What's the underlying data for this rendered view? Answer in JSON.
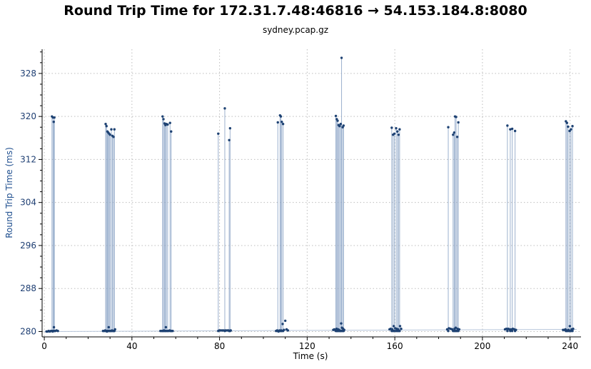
{
  "chart_data": {
    "type": "line",
    "title": "Round Trip Time for 172.31.7.48:46816 → 54.153.184.8:8080",
    "subtitle": "sydney.pcap.gz",
    "xlabel": "Time (s)",
    "ylabel": "Round Trip Time (ms)",
    "xlim": [
      -1,
      245
    ],
    "ylim": [
      279,
      332.5
    ],
    "x_ticks": [
      0,
      40,
      80,
      120,
      160,
      200,
      240
    ],
    "y_ticks": [
      280,
      288,
      296,
      304,
      312,
      320,
      328
    ],
    "grid": true,
    "baseline": {
      "x": [
        0,
        243
      ],
      "y": [
        280,
        280.4
      ]
    },
    "series": [
      {
        "name": "",
        "x": [
          3.5,
          4.0,
          4.3,
          4.6,
          28.0,
          28.4,
          28.8,
          29.2,
          29.6,
          30.0,
          30.6,
          31.1,
          31.6,
          32.0,
          54.0,
          54.4,
          54.9,
          55.3,
          55.7,
          56.3,
          57.4,
          57.9,
          79.4,
          82.4,
          84.4,
          84.8,
          106.6,
          107.6,
          108.0,
          108.4,
          109.0,
          133.1,
          133.5,
          133.9,
          134.3,
          134.8,
          135.3,
          135.7,
          136.2,
          136.6,
          158.6,
          159.2,
          159.8,
          160.6,
          161.2,
          161.7,
          162.2,
          184.4,
          186.6,
          187.1,
          187.5,
          188.0,
          188.5,
          189.0,
          211.4,
          212.7,
          213.6,
          214.9,
          238.1,
          238.6,
          239.1,
          239.8,
          240.4,
          241.1
        ],
        "y": [
          320.0,
          319.8,
          319.0,
          319.8,
          318.6,
          318.2,
          317.2,
          317.0,
          316.8,
          316.6,
          317.6,
          316.4,
          316.2,
          317.6,
          320.0,
          319.5,
          318.7,
          318.4,
          318.6,
          318.5,
          318.8,
          317.2,
          316.8,
          321.5,
          315.6,
          317.8,
          318.9,
          320.2,
          320.0,
          319.0,
          318.6,
          320.1,
          319.5,
          319.2,
          318.4,
          318.2,
          318.6,
          330.9,
          318.0,
          318.3,
          317.9,
          316.6,
          316.8,
          317.8,
          317.2,
          316.6,
          317.6,
          318.0,
          316.6,
          317.0,
          320.0,
          319.9,
          316.2,
          318.9,
          318.3,
          317.6,
          317.7,
          317.3,
          319.1,
          318.8,
          318.1,
          317.3,
          317.6,
          318.2
        ]
      }
    ],
    "markers": {
      "x": [
        1.0,
        1.5,
        2.0,
        2.5,
        3.0,
        3.8,
        4.4,
        5.0,
        5.6,
        6.2,
        26.8,
        27.3,
        27.8,
        28.6,
        29.4,
        30.2,
        30.9,
        31.7,
        32.3,
        53.0,
        53.6,
        54.6,
        55.5,
        56.6,
        57.2,
        58.0,
        58.6,
        79.9,
        80.5,
        81.2,
        81.9,
        82.8,
        83.5,
        84.1,
        85.1,
        105.8,
        106.3,
        106.9,
        107.4,
        108.2,
        108.8,
        109.4,
        110.0,
        110.6,
        111.2,
        131.9,
        132.4,
        132.9,
        133.4,
        134.1,
        134.6,
        135.1,
        135.5,
        135.9,
        136.4,
        136.9,
        157.6,
        158.1,
        158.9,
        159.5,
        160.2,
        160.9,
        161.5,
        162.4,
        162.9,
        183.9,
        184.7,
        185.5,
        186.2,
        187.3,
        187.8,
        188.7,
        189.4,
        210.3,
        210.9,
        211.8,
        212.4,
        213.2,
        213.9,
        214.6,
        215.3,
        236.8,
        237.4,
        237.9,
        238.4,
        239.3,
        239.9,
        240.7,
        241.4
      ],
      "y": [
        280.0,
        280.0,
        280.1,
        280.0,
        280.1,
        280.0,
        280.8,
        280.1,
        280.2,
        280.1,
        280.1,
        280.1,
        280.2,
        280.0,
        280.8,
        280.1,
        280.2,
        280.1,
        280.4,
        280.1,
        280.1,
        280.2,
        280.8,
        280.1,
        280.2,
        280.1,
        280.1,
        280.2,
        280.2,
        280.2,
        280.2,
        280.2,
        280.2,
        280.2,
        280.2,
        280.1,
        280.2,
        280.0,
        280.2,
        280.2,
        281.4,
        280.3,
        282.0,
        280.4,
        280.2,
        280.3,
        280.4,
        280.2,
        280.5,
        280.4,
        280.3,
        280.1,
        281.5,
        280.7,
        280.5,
        280.3,
        280.4,
        280.5,
        280.4,
        281.0,
        280.6,
        280.5,
        280.4,
        281.0,
        280.5,
        280.4,
        280.6,
        280.5,
        280.4,
        280.5,
        280.7,
        280.5,
        280.4,
        280.4,
        280.5,
        280.5,
        280.4,
        280.4,
        280.5,
        280.4,
        280.3,
        280.3,
        280.3,
        280.4,
        280.2,
        280.3,
        281.0,
        280.4,
        280.5
      ]
    },
    "colors": {
      "points": "#1e4273",
      "stems": "#8ba4c6",
      "y_axis_text": "#1f3f73"
    }
  }
}
